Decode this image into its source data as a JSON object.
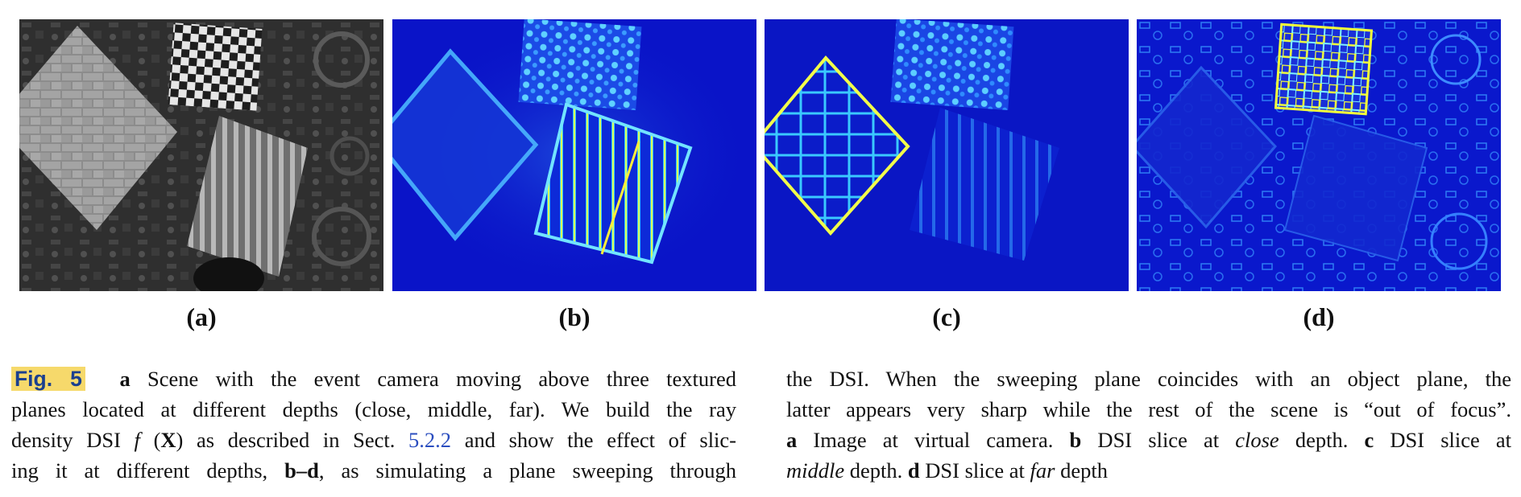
{
  "figure": {
    "panels": [
      {
        "id": "a",
        "label": "(a)",
        "kind": "grayscale scene"
      },
      {
        "id": "b",
        "label": "(b)",
        "kind": "dsi slice close"
      },
      {
        "id": "c",
        "label": "(c)",
        "kind": "dsi slice middle"
      },
      {
        "id": "d",
        "label": "(d)",
        "kind": "dsi slice far"
      }
    ],
    "colors": {
      "jet_low": "#0a14c8",
      "jet_mid": "#2fa8ff",
      "jet_high": "#f4ff3a",
      "highlight": "#f6d96b"
    }
  },
  "caption": {
    "fig_label": "Fig. 5",
    "left": {
      "l1_a": "a",
      "l1_b": " Scene with the event camera moving above three textured",
      "l2": "planes located at different depths (close, middle, far). We build the ray",
      "l3_a": "density DSI ",
      "l3_f": "f",
      "l3_b": " (",
      "l3_X": "X",
      "l3_c": ") as described in Sect. ",
      "l3_ref": "5.2.2",
      "l3_d": " and show the effect of slic-",
      "l4_a": "ing it at different depths, ",
      "l4_bd": "b–d",
      "l4_b": ", as simulating a plane sweeping through"
    },
    "right": {
      "l1": "the DSI. When the sweeping plane coincides with an object plane, the",
      "l2": "latter appears very sharp while the rest of the scene is “out of focus”.",
      "l3_a": "a",
      "l3_b": " Image at virtual camera. ",
      "l3_c": "b",
      "l3_d": " DSI slice at ",
      "l3_e": "close",
      "l3_f": " depth. ",
      "l3_g": "c",
      "l3_h": " DSI slice at",
      "l4_a": "middle",
      "l4_b": " depth. ",
      "l4_c": "d",
      "l4_d": " DSI slice at ",
      "l4_e": "far",
      "l4_f": " depth"
    }
  }
}
